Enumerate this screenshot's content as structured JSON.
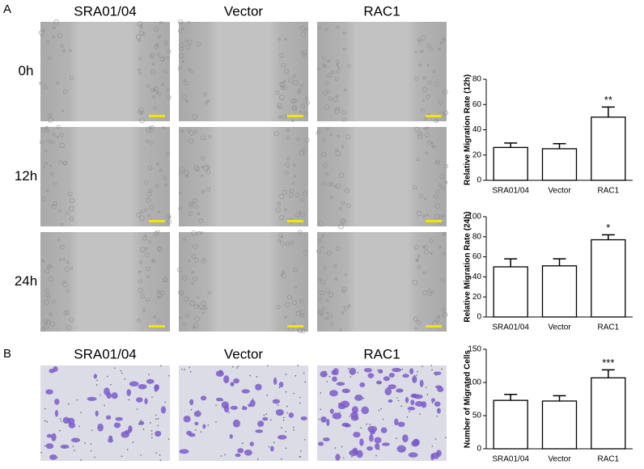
{
  "panel_labels": [
    "A",
    "B"
  ],
  "wound_assay": {
    "columns": [
      "SRA01/04",
      "Vector",
      "RAC1"
    ],
    "rows": [
      "0h",
      "12h",
      "24h"
    ]
  },
  "transwell": {
    "columns": [
      "SRA01/04",
      "Vector",
      "RAC1"
    ]
  },
  "chart_data": [
    {
      "type": "bar",
      "y_label": "Relative Migration Rate (12h)",
      "categories": [
        "SRA01/04",
        "Vector",
        "RAC1"
      ],
      "values": [
        26,
        25,
        50
      ],
      "errors": [
        3.5,
        4,
        8
      ],
      "color": "#ffffff",
      "ylim": [
        0,
        80
      ],
      "yticks": [
        0,
        20,
        40,
        60,
        80
      ],
      "annotations": [
        {
          "category": "RAC1",
          "text": "**"
        }
      ]
    },
    {
      "type": "bar",
      "y_label": "Relative Migration Rate (24h)",
      "categories": [
        "SRA01/04",
        "Vector",
        "RAC1"
      ],
      "values": [
        50,
        51,
        77
      ],
      "errors": [
        8,
        7,
        5
      ],
      "color": "#ffffff",
      "ylim": [
        0,
        100
      ],
      "yticks": [
        0,
        20,
        40,
        60,
        80,
        100
      ],
      "annotations": [
        {
          "category": "RAC1",
          "text": "*"
        }
      ]
    },
    {
      "type": "bar",
      "y_label": "Number of Migrated Cells",
      "categories": [
        "SRA01/04",
        "Vector",
        "RAC1"
      ],
      "values": [
        73,
        72,
        107
      ],
      "errors": [
        9,
        8,
        12
      ],
      "color": "#ffffff",
      "ylim": [
        0,
        150
      ],
      "yticks": [
        0,
        50,
        100,
        150
      ],
      "annotations": [
        {
          "category": "RAC1",
          "text": "***"
        }
      ]
    }
  ]
}
